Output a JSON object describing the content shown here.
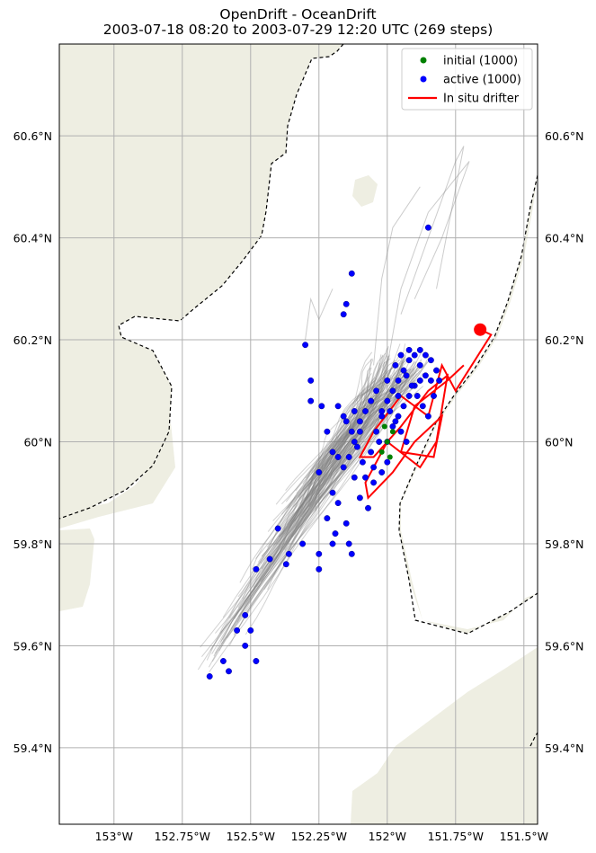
{
  "title_line1": "OpenDrift - OceanDrift",
  "title_line2": "2003-07-18 08:20 to 2003-07-29 12:20 UTC (269 steps)",
  "colors": {
    "land": "#eeeee2",
    "grid": "#b0b0b0",
    "trajectory": "#7f7f7f",
    "initial": "#008000",
    "active": "#0000ff",
    "drifter": "#ff0000",
    "coastline_dash": "#000000"
  },
  "chart_data": {
    "type": "scatter",
    "projection": "map",
    "xlim": [
      -153.2,
      -151.45
    ],
    "ylim": [
      59.25,
      60.78
    ],
    "x_ticks": [
      -153.0,
      -152.75,
      -152.5,
      -152.25,
      -152.0,
      -151.75,
      -151.5
    ],
    "x_tick_labels": [
      "153°W",
      "152.75°W",
      "152.5°W",
      "152.25°W",
      "152°W",
      "151.75°W",
      "151.5°W"
    ],
    "y_ticks": [
      59.4,
      59.6,
      59.8,
      60.0,
      60.2,
      60.4,
      60.6
    ],
    "y_tick_labels": [
      "59.4°N",
      "59.6°N",
      "59.8°N",
      "60°N",
      "60.2°N",
      "60.4°N",
      "60.6°N"
    ],
    "grid": true,
    "legend_position": "top-right",
    "legend": [
      {
        "label": "initial (1000)",
        "marker": "dot",
        "color": "#008000"
      },
      {
        "label": "active (1000)",
        "marker": "dot",
        "color": "#0000ff"
      },
      {
        "label": "In situ drifter",
        "marker": "line",
        "color": "#ff0000"
      }
    ],
    "series": [
      {
        "name": "initial (1000)",
        "points": [
          [
            -152.0,
            60.0
          ],
          [
            -152.02,
            59.98
          ],
          [
            -151.98,
            60.02
          ],
          [
            -152.01,
            60.03
          ],
          [
            -151.99,
            59.97
          ]
        ]
      },
      {
        "name": "active (1000)",
        "points": [
          [
            -151.85,
            60.42
          ],
          [
            -152.13,
            60.33
          ],
          [
            -152.15,
            60.27
          ],
          [
            -152.16,
            60.25
          ],
          [
            -152.3,
            60.19
          ],
          [
            -152.28,
            60.12
          ],
          [
            -152.28,
            60.08
          ],
          [
            -152.24,
            60.07
          ],
          [
            -152.18,
            60.07
          ],
          [
            -152.16,
            60.05
          ],
          [
            -152.12,
            60.06
          ],
          [
            -152.1,
            60.04
          ],
          [
            -152.22,
            60.02
          ],
          [
            -152.2,
            59.98
          ],
          [
            -152.18,
            59.97
          ],
          [
            -152.25,
            59.94
          ],
          [
            -152.2,
            59.9
          ],
          [
            -152.18,
            59.88
          ],
          [
            -152.22,
            59.85
          ],
          [
            -152.19,
            59.82
          ],
          [
            -152.15,
            59.84
          ],
          [
            -152.14,
            59.8
          ],
          [
            -152.13,
            59.78
          ],
          [
            -152.2,
            59.8
          ],
          [
            -152.25,
            59.78
          ],
          [
            -152.25,
            59.75
          ],
          [
            -152.4,
            59.83
          ],
          [
            -152.37,
            59.76
          ],
          [
            -152.43,
            59.77
          ],
          [
            -152.48,
            59.75
          ],
          [
            -152.52,
            59.66
          ],
          [
            -152.5,
            59.63
          ],
          [
            -152.52,
            59.6
          ],
          [
            -152.55,
            59.63
          ],
          [
            -152.6,
            59.57
          ],
          [
            -152.58,
            59.55
          ],
          [
            -152.65,
            59.54
          ],
          [
            -152.48,
            59.57
          ],
          [
            -152.36,
            59.78
          ],
          [
            -152.31,
            59.8
          ],
          [
            -152.07,
            59.87
          ],
          [
            -152.1,
            59.89
          ],
          [
            -152.08,
            59.93
          ],
          [
            -152.05,
            59.95
          ],
          [
            -152.06,
            59.98
          ],
          [
            -152.04,
            60.02
          ],
          [
            -152.02,
            60.05
          ],
          [
            -152.0,
            60.08
          ],
          [
            -151.98,
            60.1
          ],
          [
            -151.96,
            60.12
          ],
          [
            -151.94,
            60.14
          ],
          [
            -151.92,
            60.16
          ],
          [
            -151.9,
            60.17
          ],
          [
            -151.88,
            60.15
          ],
          [
            -151.86,
            60.13
          ],
          [
            -151.84,
            60.12
          ],
          [
            -151.86,
            60.17
          ],
          [
            -151.88,
            60.18
          ],
          [
            -151.84,
            60.16
          ],
          [
            -151.82,
            60.14
          ],
          [
            -151.9,
            60.11
          ],
          [
            -151.92,
            60.09
          ],
          [
            -151.94,
            60.07
          ],
          [
            -151.96,
            60.05
          ],
          [
            -151.98,
            60.03
          ],
          [
            -152.0,
            60.0
          ],
          [
            -152.02,
            60.06
          ],
          [
            -152.04,
            60.1
          ],
          [
            -152.06,
            60.08
          ],
          [
            -152.08,
            60.06
          ],
          [
            -152.1,
            60.02
          ],
          [
            -152.12,
            60.0
          ],
          [
            -152.14,
            59.97
          ],
          [
            -152.16,
            59.95
          ],
          [
            -152.12,
            59.93
          ],
          [
            -152.0,
            60.12
          ],
          [
            -151.97,
            60.15
          ],
          [
            -151.95,
            60.17
          ],
          [
            -151.93,
            60.13
          ],
          [
            -151.91,
            60.11
          ],
          [
            -151.89,
            60.09
          ],
          [
            -151.87,
            60.07
          ],
          [
            -151.85,
            60.05
          ],
          [
            -151.83,
            60.09
          ],
          [
            -151.81,
            60.12
          ],
          [
            -151.88,
            60.12
          ],
          [
            -151.92,
            60.18
          ],
          [
            -151.96,
            60.09
          ],
          [
            -151.99,
            60.06
          ],
          [
            -152.03,
            60.0
          ],
          [
            -152.05,
            59.92
          ],
          [
            -152.09,
            59.96
          ],
          [
            -152.11,
            59.99
          ],
          [
            -152.13,
            60.02
          ],
          [
            -152.15,
            60.04
          ],
          [
            -151.97,
            60.04
          ],
          [
            -151.95,
            60.02
          ],
          [
            -151.93,
            60.0
          ],
          [
            -152.0,
            59.96
          ],
          [
            -152.02,
            59.94
          ]
        ]
      },
      {
        "name": "In situ drifter",
        "points": [
          [
            -151.66,
            60.22
          ],
          [
            -151.62,
            60.21
          ],
          [
            -151.75,
            60.1
          ],
          [
            -151.8,
            60.15
          ],
          [
            -151.85,
            60.05
          ],
          [
            -151.95,
            60.09
          ],
          [
            -152.05,
            60.02
          ],
          [
            -152.1,
            59.97
          ],
          [
            -152.05,
            59.97
          ],
          [
            -151.95,
            60.03
          ],
          [
            -151.85,
            60.1
          ],
          [
            -151.78,
            60.13
          ],
          [
            -151.82,
            60.0
          ],
          [
            -151.88,
            59.95
          ],
          [
            -152.0,
            60.0
          ],
          [
            -152.08,
            59.92
          ],
          [
            -152.07,
            59.89
          ],
          [
            -151.98,
            59.94
          ],
          [
            -151.9,
            60.0
          ],
          [
            -151.8,
            60.05
          ],
          [
            -151.83,
            59.97
          ],
          [
            -151.95,
            59.98
          ],
          [
            -151.9,
            60.07
          ],
          [
            -151.78,
            60.12
          ],
          [
            -151.72,
            60.15
          ]
        ]
      }
    ]
  }
}
